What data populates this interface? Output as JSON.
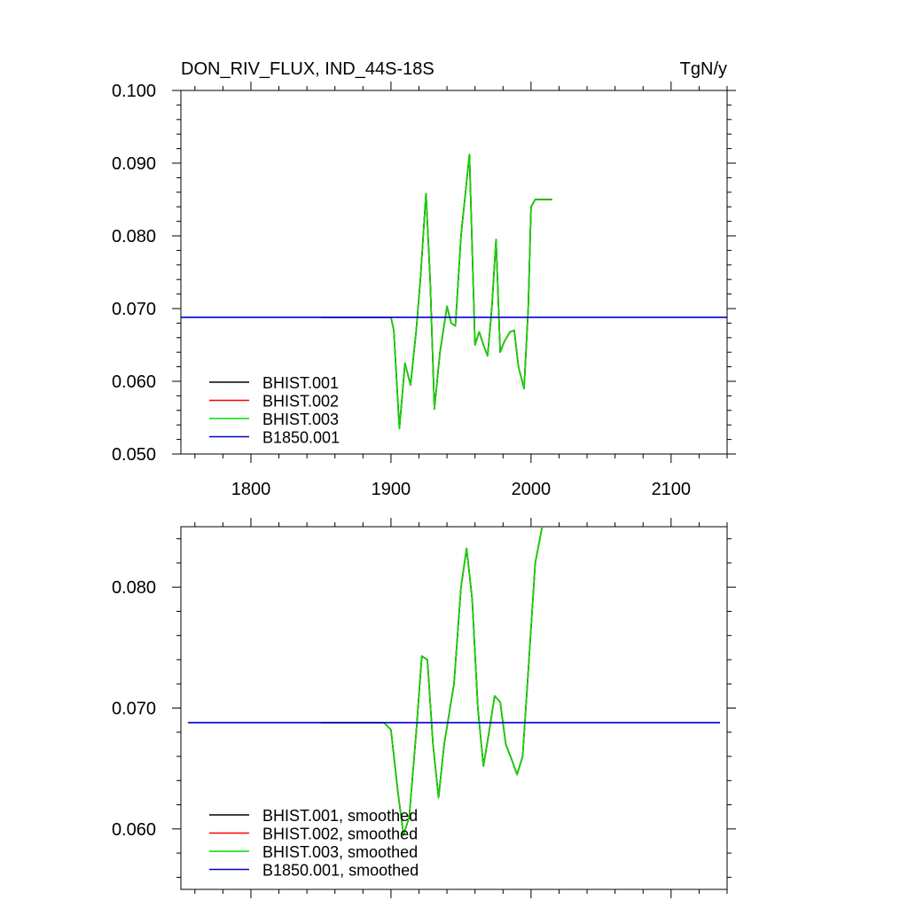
{
  "chart_data": [
    {
      "type": "line",
      "title": "DON_RIV_FLUX, IND_44S-18S",
      "units": "TgN/y",
      "xlim": [
        1750,
        2140
      ],
      "ylim": [
        0.05,
        0.1
      ],
      "x_ticks": [
        1800,
        1900,
        2000,
        2100
      ],
      "x_tick_labels": [
        "1800",
        "1900",
        "2000",
        "2100"
      ],
      "y_ticks": [
        0.05,
        0.06,
        0.07,
        0.08,
        0.09,
        0.1
      ],
      "y_tick_labels": [
        "0.050",
        "0.060",
        "0.070",
        "0.080",
        "0.090",
        "0.100"
      ],
      "legend_position": "bottom-left",
      "series": [
        {
          "name": "BHIST.001",
          "color": "#000000",
          "x": [
            1850,
            1900,
            1902,
            1906,
            1910,
            1914,
            1918,
            1921,
            1925,
            1928,
            1931,
            1935,
            1940,
            1943,
            1946,
            1950,
            1956,
            1960,
            1963,
            1966,
            1969,
            1972,
            1975,
            1978,
            1981,
            1985,
            1988,
            1991,
            1995,
            1998,
            2000,
            2003,
            2015
          ],
          "y": [
            0.0688,
            0.0688,
            0.067,
            0.0535,
            0.0625,
            0.0595,
            0.067,
            0.074,
            0.0858,
            0.074,
            0.0562,
            0.064,
            0.0703,
            0.068,
            0.0676,
            0.08,
            0.0912,
            0.065,
            0.0668,
            0.065,
            0.0635,
            0.07,
            0.0795,
            0.064,
            0.0655,
            0.0668,
            0.067,
            0.062,
            0.059,
            0.07,
            0.084,
            0.085,
            0.085
          ]
        },
        {
          "name": "BHIST.002",
          "color": "#ff0000",
          "x": [
            1850,
            1900,
            1902,
            1906,
            1910,
            1914,
            1918,
            1921,
            1925,
            1928,
            1931,
            1935,
            1940,
            1943,
            1946,
            1950,
            1956,
            1960,
            1963,
            1966,
            1969,
            1972,
            1975,
            1978,
            1981,
            1985,
            1988,
            1991,
            1995,
            1998,
            2000,
            2003,
            2015
          ],
          "y": [
            0.0688,
            0.0688,
            0.067,
            0.0535,
            0.0625,
            0.0595,
            0.067,
            0.074,
            0.0858,
            0.074,
            0.0562,
            0.064,
            0.0703,
            0.068,
            0.0676,
            0.08,
            0.0912,
            0.065,
            0.0668,
            0.065,
            0.0635,
            0.07,
            0.0795,
            0.064,
            0.0655,
            0.0668,
            0.067,
            0.062,
            0.059,
            0.07,
            0.084,
            0.085,
            0.085
          ]
        },
        {
          "name": "BHIST.003",
          "color": "#00dd00",
          "x": [
            1850,
            1900,
            1902,
            1906,
            1910,
            1914,
            1918,
            1921,
            1925,
            1928,
            1931,
            1935,
            1940,
            1943,
            1946,
            1950,
            1956,
            1960,
            1963,
            1966,
            1969,
            1972,
            1975,
            1978,
            1981,
            1985,
            1988,
            1991,
            1995,
            1998,
            2000,
            2003,
            2015
          ],
          "y": [
            0.0688,
            0.0688,
            0.067,
            0.0535,
            0.0625,
            0.0595,
            0.067,
            0.074,
            0.0858,
            0.074,
            0.0562,
            0.064,
            0.0703,
            0.068,
            0.0676,
            0.08,
            0.0912,
            0.065,
            0.0668,
            0.065,
            0.0635,
            0.07,
            0.0795,
            0.064,
            0.0655,
            0.0668,
            0.067,
            0.062,
            0.059,
            0.07,
            0.084,
            0.085,
            0.085
          ]
        },
        {
          "name": "B1850.001",
          "color": "#0000cc",
          "x": [
            1750,
            2140
          ],
          "y": [
            0.0688,
            0.0688
          ]
        }
      ]
    },
    {
      "type": "line",
      "xlim": [
        1750,
        2140
      ],
      "ylim": [
        0.055,
        0.085
      ],
      "x_ticks": [
        1800,
        1900,
        2000,
        2100
      ],
      "y_ticks": [
        0.06,
        0.07,
        0.08
      ],
      "y_tick_labels": [
        "0.060",
        "0.070",
        "0.080"
      ],
      "legend_position": "bottom-left",
      "series": [
        {
          "name": "BHIST.001, smoothed",
          "color": "#000000",
          "x": [
            1850,
            1895,
            1900,
            1905,
            1909,
            1913,
            1918,
            1922,
            1926,
            1930,
            1934,
            1938,
            1945,
            1950,
            1954,
            1958,
            1962,
            1966,
            1970,
            1974,
            1978,
            1982,
            1986,
            1990,
            1994,
            1998,
            2003,
            2008
          ],
          "y": [
            0.0688,
            0.0688,
            0.0682,
            0.063,
            0.0595,
            0.061,
            0.068,
            0.0743,
            0.074,
            0.067,
            0.0626,
            0.067,
            0.072,
            0.08,
            0.0832,
            0.079,
            0.07,
            0.0652,
            0.068,
            0.071,
            0.0705,
            0.067,
            0.0658,
            0.0645,
            0.066,
            0.073,
            0.082,
            0.085
          ]
        },
        {
          "name": "BHIST.002, smoothed",
          "color": "#ff0000",
          "x": [
            1850,
            1895,
            1900,
            1905,
            1909,
            1913,
            1918,
            1922,
            1926,
            1930,
            1934,
            1938,
            1945,
            1950,
            1954,
            1958,
            1962,
            1966,
            1970,
            1974,
            1978,
            1982,
            1986,
            1990,
            1994,
            1998,
            2003,
            2008
          ],
          "y": [
            0.0688,
            0.0688,
            0.0682,
            0.063,
            0.0595,
            0.061,
            0.068,
            0.0743,
            0.074,
            0.067,
            0.0626,
            0.067,
            0.072,
            0.08,
            0.0832,
            0.079,
            0.07,
            0.0652,
            0.068,
            0.071,
            0.0705,
            0.067,
            0.0658,
            0.0645,
            0.066,
            0.073,
            0.082,
            0.085
          ]
        },
        {
          "name": "BHIST.003, smoothed",
          "color": "#00dd00",
          "x": [
            1850,
            1895,
            1900,
            1905,
            1909,
            1913,
            1918,
            1922,
            1926,
            1930,
            1934,
            1938,
            1945,
            1950,
            1954,
            1958,
            1962,
            1966,
            1970,
            1974,
            1978,
            1982,
            1986,
            1990,
            1994,
            1998,
            2003,
            2008
          ],
          "y": [
            0.0688,
            0.0688,
            0.0682,
            0.063,
            0.0595,
            0.061,
            0.068,
            0.0743,
            0.074,
            0.067,
            0.0626,
            0.067,
            0.072,
            0.08,
            0.0832,
            0.079,
            0.07,
            0.0652,
            0.068,
            0.071,
            0.0705,
            0.067,
            0.0658,
            0.0645,
            0.066,
            0.073,
            0.082,
            0.085
          ]
        },
        {
          "name": "B1850.001, smoothed",
          "color": "#0000cc",
          "x": [
            1755,
            2135
          ],
          "y": [
            0.0688,
            0.0688
          ]
        }
      ]
    }
  ]
}
